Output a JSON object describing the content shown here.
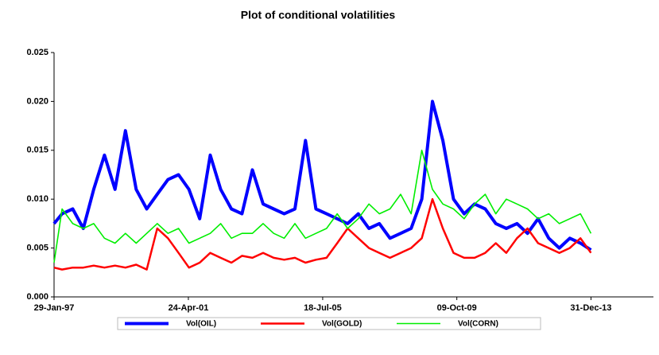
{
  "chart_data": {
    "type": "line",
    "title": "Plot of conditional volatilities",
    "x": [
      "1997-01-29",
      "1997-05-01",
      "1997-09-01",
      "1998-01-01",
      "1998-05-01",
      "1998-09-01",
      "1999-01-01",
      "1999-05-01",
      "1999-09-01",
      "2000-01-01",
      "2000-05-01",
      "2000-09-01",
      "2001-01-01",
      "2001-05-01",
      "2001-09-01",
      "2002-01-01",
      "2002-05-01",
      "2002-09-01",
      "2003-01-01",
      "2003-05-01",
      "2003-09-01",
      "2004-01-01",
      "2004-05-01",
      "2004-09-01",
      "2005-01-01",
      "2005-05-01",
      "2005-09-01",
      "2006-01-01",
      "2006-05-01",
      "2006-09-01",
      "2007-01-01",
      "2007-05-01",
      "2007-09-01",
      "2008-01-01",
      "2008-05-01",
      "2008-09-01",
      "2009-01-01",
      "2009-05-01",
      "2009-09-01",
      "2010-01-01",
      "2010-05-01",
      "2010-09-01",
      "2011-01-01",
      "2011-05-01",
      "2011-09-01",
      "2012-01-01",
      "2012-05-01",
      "2012-09-01",
      "2013-01-01",
      "2013-05-01",
      "2013-09-01",
      "2013-12-31"
    ],
    "series": [
      {
        "name": "Vol(OIL)",
        "color": "#0000ff",
        "values": [
          0.0075,
          0.0085,
          0.009,
          0.007,
          0.011,
          0.0145,
          0.011,
          0.017,
          0.011,
          0.009,
          0.0105,
          0.012,
          0.0125,
          0.011,
          0.008,
          0.0145,
          0.011,
          0.009,
          0.0085,
          0.013,
          0.0095,
          0.009,
          0.0085,
          0.009,
          0.016,
          0.009,
          0.0085,
          0.008,
          0.0075,
          0.0085,
          0.007,
          0.0075,
          0.006,
          0.0065,
          0.007,
          0.01,
          0.02,
          0.016,
          0.01,
          0.0085,
          0.0095,
          0.009,
          0.0075,
          0.007,
          0.0075,
          0.0065,
          0.008,
          0.006,
          0.005,
          0.006,
          0.0055,
          0.0048
        ]
      },
      {
        "name": "Vol(GOLD)",
        "color": "#ff0000",
        "values": [
          0.003,
          0.0028,
          0.003,
          0.003,
          0.0032,
          0.003,
          0.0032,
          0.003,
          0.0033,
          0.0028,
          0.007,
          0.006,
          0.0045,
          0.003,
          0.0035,
          0.0045,
          0.004,
          0.0035,
          0.0042,
          0.004,
          0.0045,
          0.004,
          0.0038,
          0.004,
          0.0035,
          0.0038,
          0.004,
          0.0055,
          0.007,
          0.006,
          0.005,
          0.0045,
          0.004,
          0.0045,
          0.005,
          0.006,
          0.01,
          0.007,
          0.0045,
          0.004,
          0.004,
          0.0045,
          0.0055,
          0.0045,
          0.006,
          0.007,
          0.0055,
          0.005,
          0.0045,
          0.005,
          0.006,
          0.0045
        ]
      },
      {
        "name": "Vol(CORN)",
        "color": "#00ee00",
        "values": [
          0.0035,
          0.009,
          0.0075,
          0.007,
          0.0075,
          0.006,
          0.0055,
          0.0065,
          0.0055,
          0.0065,
          0.0075,
          0.0065,
          0.007,
          0.0055,
          0.006,
          0.0065,
          0.0075,
          0.006,
          0.0065,
          0.0065,
          0.0075,
          0.0065,
          0.006,
          0.0075,
          0.006,
          0.0065,
          0.007,
          0.0085,
          0.007,
          0.008,
          0.0095,
          0.0085,
          0.009,
          0.0105,
          0.0085,
          0.015,
          0.011,
          0.0095,
          0.009,
          0.008,
          0.0095,
          0.0105,
          0.0085,
          0.01,
          0.0095,
          0.009,
          0.008,
          0.0085,
          0.0075,
          0.008,
          0.0085,
          0.0065
        ]
      }
    ],
    "xlim": [
      "1997-01-29",
      "2015-12-20"
    ],
    "xticks": [
      {
        "value": "1997-01-29",
        "label": "29-Jan-97"
      },
      {
        "value": "2001-04-24",
        "label": "24-Apr-01"
      },
      {
        "value": "2005-07-18",
        "label": "18-Jul-05"
      },
      {
        "value": "2009-10-09",
        "label": "09-Oct-09"
      },
      {
        "value": "2013-12-31",
        "label": "31-Dec-13"
      }
    ],
    "ylim": [
      0,
      0.025
    ],
    "yticks": [
      {
        "value": 0,
        "label": "0.000"
      },
      {
        "value": 0.005,
        "label": "0.005"
      },
      {
        "value": 0.01,
        "label": "0.010"
      },
      {
        "value": 0.015,
        "label": "0.015"
      },
      {
        "value": 0.02,
        "label": "0.020"
      },
      {
        "value": 0.025,
        "label": "0.025"
      }
    ],
    "grid": false,
    "legend": "bottom"
  }
}
